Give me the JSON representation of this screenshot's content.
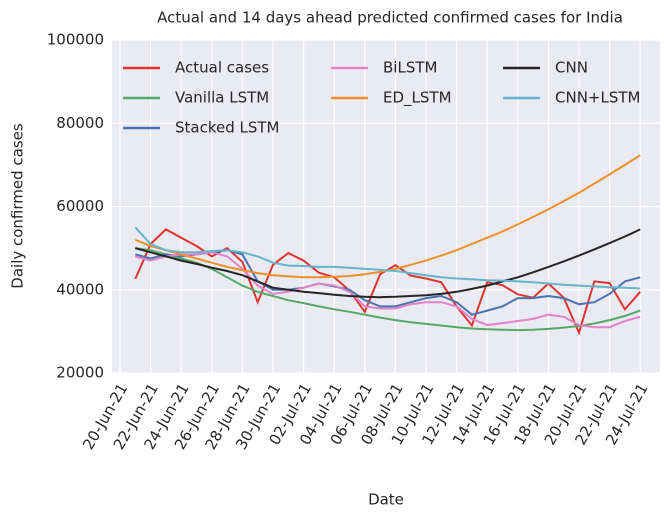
{
  "chart_data": {
    "type": "line",
    "title": "Actual and 14 days ahead predicted confirmed cases for India",
    "x_label": "Date",
    "y_label": "Daily confirmed cases",
    "categories": [
      "20-Jun-21",
      null,
      "22-Jun-21",
      null,
      "24-Jun-21",
      null,
      "26-Jun-21",
      null,
      "28-Jun-21",
      null,
      "30-Jun-21",
      null,
      "02-Jul-21",
      null,
      "04-Jul-21",
      null,
      "06-Jul-21",
      null,
      "08-Jul-21",
      null,
      "10-Jul-21",
      null,
      "12-Jul-21",
      null,
      "14-Jul-21",
      null,
      "16-Jul-21",
      null,
      "18-Jul-21",
      null,
      "20-Jul-21",
      null,
      "22-Jul-21",
      null,
      "24-Jul-21"
    ],
    "ylim": [
      20000,
      100000
    ],
    "yticks": [
      20000,
      40000,
      60000,
      80000,
      100000
    ],
    "grid": true,
    "legend": "upper left",
    "series": [
      {
        "name": "Actual cases",
        "color": "#e0342f",
        "values": [
          null,
          42600,
          51000,
          54500,
          52500,
          50500,
          48000,
          50000,
          46700,
          37000,
          46000,
          48800,
          47000,
          44100,
          43000,
          39800,
          34700,
          43700,
          45900,
          43400,
          42700,
          41800,
          36000,
          31400,
          41800,
          41100,
          38900,
          38100,
          41500,
          38100,
          29700,
          42000,
          41600,
          35300,
          39500
        ]
      },
      {
        "name": "Vanilla LSTM",
        "color": "#55a868",
        "values": [
          null,
          50000,
          49500,
          48500,
          47500,
          46500,
          45000,
          43000,
          41000,
          39500,
          38500,
          37500,
          36800,
          36000,
          35300,
          34700,
          34000,
          33300,
          32700,
          32200,
          31800,
          31400,
          31000,
          30700,
          30500,
          30400,
          30300,
          30400,
          30600,
          30900,
          31300,
          31900,
          32700,
          33700,
          35000
        ]
      },
      {
        "name": "Stacked LSTM",
        "color": "#4c72b0",
        "values": [
          null,
          48500,
          47500,
          48500,
          48000,
          48500,
          49000,
          49500,
          48500,
          42000,
          40000,
          40000,
          40500,
          41500,
          40800,
          40000,
          37500,
          36000,
          36000,
          37000,
          38000,
          38500,
          37000,
          34000,
          35000,
          36000,
          38000,
          38000,
          38500,
          38000,
          36500,
          37000,
          39000,
          42000,
          43000
        ]
      },
      {
        "name": "BiLSTM",
        "color": "#e283c8",
        "values": [
          null,
          48000,
          47000,
          48000,
          48500,
          48500,
          49000,
          48000,
          45000,
          41000,
          39000,
          39500,
          40500,
          41500,
          41000,
          39500,
          36000,
          35500,
          35500,
          36500,
          37000,
          37000,
          36000,
          33000,
          31500,
          32000,
          32500,
          33000,
          34000,
          33500,
          31500,
          31000,
          31000,
          32500,
          33500
        ]
      },
      {
        "name": "ED_LSTM",
        "color": "#f28e2b",
        "values": [
          null,
          52000,
          50500,
          49500,
          48500,
          47500,
          46500,
          45500,
          44700,
          44000,
          43500,
          43200,
          43000,
          43000,
          43100,
          43300,
          43700,
          44300,
          45000,
          46000,
          47000,
          48200,
          49500,
          51000,
          52500,
          54000,
          55700,
          57500,
          59300,
          61300,
          63300,
          65500,
          67700,
          70000,
          72300
        ]
      },
      {
        "name": "CNN",
        "color": "#262626",
        "values": [
          null,
          50000,
          49000,
          48000,
          47000,
          46200,
          45300,
          44500,
          43500,
          42000,
          40500,
          40000,
          39500,
          39200,
          38800,
          38500,
          38300,
          38200,
          38300,
          38500,
          38700,
          39000,
          39500,
          40200,
          41000,
          42000,
          43000,
          44200,
          45500,
          46800,
          48200,
          49700,
          51200,
          52800,
          54500
        ]
      },
      {
        "name": "CNN+LSTM",
        "color": "#64b5cd",
        "values": [
          null,
          55000,
          51000,
          49500,
          49000,
          49000,
          49300,
          49500,
          49000,
          48000,
          46500,
          45800,
          45700,
          45500,
          45500,
          45300,
          45000,
          44800,
          44500,
          44000,
          43500,
          43000,
          42700,
          42500,
          42300,
          42200,
          42000,
          41800,
          41500,
          41200,
          41000,
          40800,
          40600,
          40500,
          40300
        ]
      }
    ]
  }
}
